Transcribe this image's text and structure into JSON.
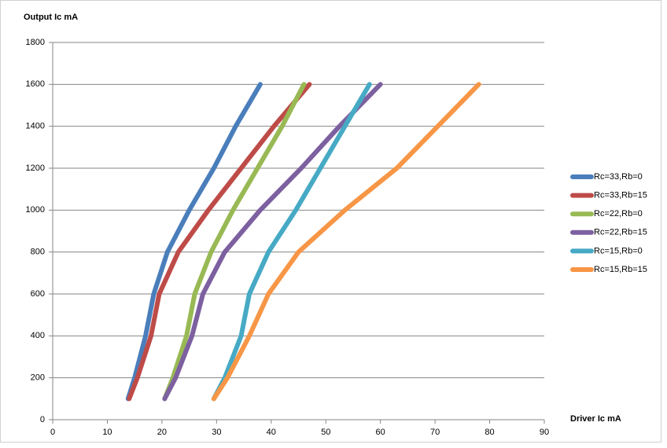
{
  "chart_data": {
    "type": "line",
    "y_label": "Output Ic mA",
    "x_label": "Driver Ic mA",
    "xlim": [
      0,
      90
    ],
    "xticks": [
      0,
      10,
      20,
      30,
      40,
      50,
      60,
      70,
      80,
      90
    ],
    "ylim": [
      0,
      1800
    ],
    "yticks": [
      0,
      200,
      400,
      600,
      800,
      1000,
      1200,
      1400,
      1600,
      1800
    ],
    "grid": true,
    "legend": "right",
    "series": [
      {
        "name": "Rc=33,Rb=0",
        "color": "#4a7ebb",
        "x": [
          13.8,
          15,
          17,
          18.5,
          21,
          25,
          29.5,
          33.5,
          38
        ],
        "values": [
          100,
          200,
          400,
          600,
          800,
          1000,
          1200,
          1400,
          1600
        ]
      },
      {
        "name": "Rc=33,Rb=15",
        "color": "#be4b48",
        "x": [
          14,
          15.5,
          18,
          19.5,
          23,
          28.5,
          34.5,
          40.5,
          47
        ],
        "values": [
          100,
          200,
          400,
          600,
          800,
          1000,
          1200,
          1400,
          1600
        ]
      },
      {
        "name": "Rc=22,Rb=0",
        "color": "#98b954",
        "x": [
          20.5,
          22,
          24.5,
          26,
          29,
          33,
          37.5,
          42,
          46
        ],
        "values": [
          100,
          200,
          400,
          600,
          800,
          1000,
          1200,
          1400,
          1600
        ]
      },
      {
        "name": "Rc=22,Rb=15",
        "color": "#7d60a0",
        "x": [
          20.5,
          22.5,
          25.5,
          27.5,
          31.5,
          38,
          45.5,
          52.5,
          60
        ],
        "values": [
          100,
          200,
          400,
          600,
          800,
          1000,
          1200,
          1400,
          1600
        ]
      },
      {
        "name": "Rc=15,Rb=0",
        "color": "#46aac5",
        "x": [
          29.5,
          31.5,
          34.5,
          36,
          39.5,
          44.5,
          49,
          53.5,
          58
        ],
        "values": [
          100,
          200,
          400,
          600,
          800,
          1000,
          1200,
          1400,
          1600
        ]
      },
      {
        "name": "Rc=15,Rb=15",
        "color": "#f79646",
        "x": [
          29.5,
          32,
          36,
          39.5,
          45,
          53.5,
          63,
          70.5,
          78
        ],
        "values": [
          100,
          200,
          400,
          600,
          800,
          1000,
          1200,
          1400,
          1600
        ]
      }
    ]
  }
}
